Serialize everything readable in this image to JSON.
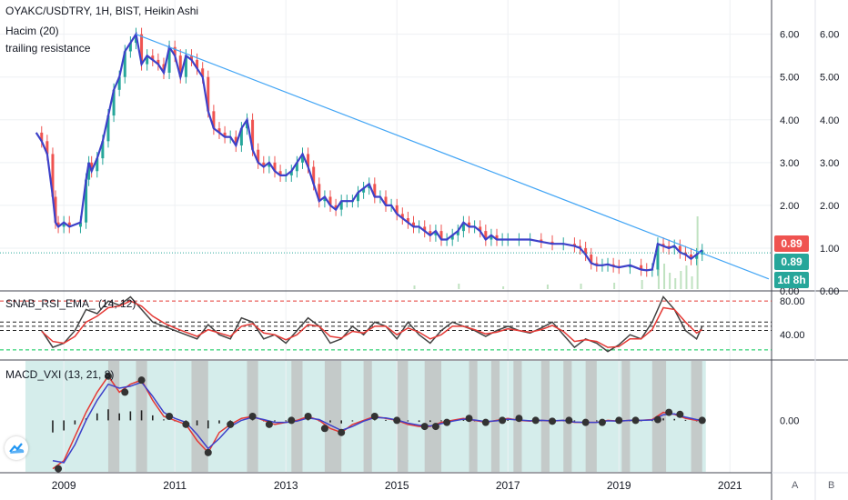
{
  "header": {
    "symbol_line": "OYAKC/USDTRY, 1H, BIST, Heikin Ashi",
    "indicator_1": "Hacim (20)",
    "indicator_2": "trailing resistance"
  },
  "price_tags": {
    "last_price": "0.89",
    "close_price": "0.89",
    "countdown": "1d 8h"
  },
  "rsi_panel": {
    "title": "SNAB_RSI_EMA_ (14, 12)"
  },
  "macd_panel": {
    "title": "MACD_VXI (13, 21, 8)"
  },
  "axis_buttons": {
    "auto": "A",
    "log": "B"
  },
  "colors": {
    "heikin_up": "#26a69a",
    "heikin_down": "#ef5350",
    "trailing_line": "#3d41c9",
    "trend_line": "#42a5f5",
    "rsi_line": "#424242",
    "rsi_ema": "#e53935",
    "macd_bg_teal": "#b2dfdb",
    "macd_bg_gray": "#bdbdbd",
    "last_price_red": "#ef5350",
    "close_teal": "#26a69a"
  },
  "chart_data": [
    {
      "type": "line",
      "title": "OYAKC/USDTRY, 1H, BIST, Heikin Ashi",
      "x_tick_labels": [
        "2009",
        "2011",
        "2013",
        "2015",
        "2017",
        "2019",
        "2021"
      ],
      "x_ticks": [
        2009,
        2011,
        2013,
        2015,
        2017,
        2019,
        2021
      ],
      "xlim": [
        2007.85,
        2021.75
      ],
      "y_tick_labels": [
        "0.00",
        "1.00",
        "2.00",
        "3.00",
        "4.00",
        "5.00",
        "6.00"
      ],
      "y_ticks": [
        0,
        1,
        2,
        3,
        4,
        5,
        6
      ],
      "ylim": [
        0,
        6.8
      ],
      "last_value": 0.89,
      "series": [
        {
          "x": [
            2008.5,
            2008.6,
            2008.7,
            2008.8,
            2008.85,
            2008.9,
            2009.0,
            2009.1,
            2009.3,
            2009.4,
            2009.45,
            2009.5,
            2009.6,
            2009.7,
            2009.8,
            2009.9,
            2010.0,
            2010.1,
            2010.2,
            2010.3,
            2010.4,
            2010.5,
            2010.6,
            2010.7,
            2010.8,
            2010.9,
            2011.0,
            2011.1,
            2011.2,
            2011.3,
            2011.4,
            2011.5,
            2011.6,
            2011.7,
            2011.8,
            2011.9,
            2012.0,
            2012.1,
            2012.2,
            2012.3,
            2012.4,
            2012.5,
            2012.6,
            2012.7,
            2012.8,
            2012.9,
            2013.0,
            2013.1,
            2013.2,
            2013.3,
            2013.4,
            2013.5,
            2013.6,
            2013.7,
            2013.8,
            2013.9,
            2014.0,
            2014.1,
            2014.2,
            2014.3,
            2014.4,
            2014.5,
            2014.6,
            2014.7,
            2014.8,
            2014.9,
            2015.0,
            2015.1,
            2015.2,
            2015.3,
            2015.4,
            2015.5,
            2015.6,
            2015.7,
            2015.8,
            2015.9,
            2016.0,
            2016.1,
            2016.2,
            2016.3,
            2016.4,
            2016.5,
            2016.6,
            2016.7,
            2016.8,
            2016.9,
            2017.0,
            2017.2,
            2017.4,
            2017.6,
            2017.8,
            2018.0,
            2018.2,
            2018.3,
            2018.4,
            2018.5,
            2018.6,
            2018.7,
            2018.8,
            2018.9,
            2019.0,
            2019.2,
            2019.4,
            2019.5,
            2019.6,
            2019.7,
            2019.8,
            2019.9,
            2020.0,
            2020.1,
            2020.2,
            2020.3,
            2020.4,
            2020.5
          ],
          "values": [
            3.7,
            3.5,
            3.2,
            2.2,
            1.6,
            1.5,
            1.6,
            1.5,
            1.6,
            2.6,
            3.0,
            2.8,
            3.1,
            3.5,
            4.1,
            4.7,
            5.0,
            5.6,
            5.8,
            6.0,
            5.3,
            5.5,
            5.4,
            5.3,
            5.1,
            5.7,
            5.5,
            5.0,
            5.5,
            5.4,
            5.2,
            5.0,
            4.2,
            3.8,
            3.7,
            3.6,
            3.6,
            3.4,
            3.8,
            4.0,
            3.3,
            3.0,
            2.9,
            3.0,
            2.8,
            2.7,
            2.7,
            2.8,
            3.0,
            3.2,
            2.9,
            2.5,
            2.1,
            2.2,
            2.0,
            1.9,
            2.1,
            2.1,
            2.1,
            2.3,
            2.4,
            2.5,
            2.2,
            2.2,
            2.0,
            2.0,
            1.8,
            1.7,
            1.6,
            1.5,
            1.5,
            1.4,
            1.3,
            1.4,
            1.2,
            1.2,
            1.3,
            1.4,
            1.6,
            1.5,
            1.5,
            1.4,
            1.2,
            1.3,
            1.2,
            1.2,
            1.2,
            1.2,
            1.2,
            1.15,
            1.1,
            1.1,
            1.05,
            1.0,
            0.85,
            0.65,
            0.6,
            0.6,
            0.62,
            0.58,
            0.55,
            0.6,
            0.5,
            0.48,
            0.5,
            1.1,
            1.05,
            1.0,
            1.05,
            0.9,
            0.85,
            0.75,
            0.85,
            0.95
          ]
        }
      ],
      "trend_line": {
        "x": [
          2010.3,
          2021.7
        ],
        "values": [
          6.0,
          0.28
        ]
      }
    },
    {
      "type": "line",
      "title": "SNAB_RSI_EMA_ (14, 12)",
      "y_tick_labels": [
        "80.00",
        "40.00"
      ],
      "y_ticks": [
        80,
        40
      ],
      "ylim": [
        10,
        92
      ],
      "levels": [
        80,
        55,
        50,
        45,
        22
      ],
      "series": [
        {
          "x": [
            2008.6,
            2008.8,
            2009.0,
            2009.2,
            2009.4,
            2009.6,
            2009.8,
            2010.0,
            2010.2,
            2010.4,
            2010.6,
            2010.8,
            2011.0,
            2011.2,
            2011.4,
            2011.6,
            2011.8,
            2012.0,
            2012.2,
            2012.4,
            2012.6,
            2012.8,
            2013.0,
            2013.2,
            2013.4,
            2013.6,
            2013.8,
            2014.0,
            2014.2,
            2014.4,
            2014.6,
            2014.8,
            2015.0,
            2015.2,
            2015.4,
            2015.6,
            2015.8,
            2016.0,
            2016.2,
            2016.4,
            2016.6,
            2016.8,
            2017.0,
            2017.2,
            2017.4,
            2017.6,
            2017.8,
            2018.0,
            2018.2,
            2018.4,
            2018.6,
            2018.8,
            2019.0,
            2019.2,
            2019.4,
            2019.6,
            2019.8,
            2020.0,
            2020.2,
            2020.4,
            2020.5
          ],
          "values": [
            45,
            25,
            30,
            45,
            70,
            65,
            80,
            75,
            85,
            70,
            55,
            50,
            45,
            40,
            35,
            52,
            40,
            35,
            60,
            55,
            35,
            40,
            30,
            45,
            60,
            50,
            30,
            35,
            50,
            40,
            55,
            50,
            35,
            55,
            40,
            30,
            45,
            55,
            50,
            45,
            38,
            45,
            50,
            45,
            42,
            48,
            55,
            40,
            25,
            35,
            30,
            20,
            28,
            40,
            35,
            55,
            85,
            70,
            45,
            35,
            50
          ]
        },
        {
          "x": [
            2008.6,
            2008.8,
            2009.0,
            2009.2,
            2009.4,
            2009.6,
            2009.8,
            2010.0,
            2010.2,
            2010.4,
            2010.6,
            2010.8,
            2011.0,
            2011.2,
            2011.4,
            2011.6,
            2011.8,
            2012.0,
            2012.2,
            2012.4,
            2012.6,
            2012.8,
            2013.0,
            2013.2,
            2013.4,
            2013.6,
            2013.8,
            2014.0,
            2014.2,
            2014.4,
            2014.6,
            2014.8,
            2015.0,
            2015.2,
            2015.4,
            2015.6,
            2015.8,
            2016.0,
            2016.2,
            2016.4,
            2016.6,
            2016.8,
            2017.0,
            2017.2,
            2017.4,
            2017.6,
            2017.8,
            2018.0,
            2018.2,
            2018.4,
            2018.6,
            2018.8,
            2019.0,
            2019.2,
            2019.4,
            2019.6,
            2019.8,
            2020.0,
            2020.2,
            2020.4,
            2020.5
          ],
          "values": [
            44,
            32,
            30,
            38,
            55,
            62,
            72,
            74,
            80,
            74,
            62,
            54,
            48,
            43,
            38,
            46,
            42,
            38,
            50,
            53,
            42,
            40,
            34,
            40,
            52,
            50,
            38,
            36,
            44,
            42,
            50,
            50,
            40,
            48,
            43,
            35,
            40,
            50,
            50,
            46,
            41,
            43,
            47,
            45,
            43,
            46,
            51,
            44,
            32,
            34,
            32,
            25,
            26,
            35,
            35,
            46,
            72,
            70,
            55,
            42,
            46
          ]
        }
      ]
    },
    {
      "type": "line",
      "title": "MACD_VXI (13, 21, 8)",
      "y_tick_labels": [
        "0.00"
      ],
      "y_ticks": [
        0
      ],
      "ylim": [
        -1.3,
        1.5
      ],
      "series": [
        {
          "x": [
            2008.8,
            2009.0,
            2009.2,
            2009.4,
            2009.6,
            2009.8,
            2010.0,
            2010.2,
            2010.4,
            2010.6,
            2010.8,
            2011.0,
            2011.2,
            2011.4,
            2011.6,
            2011.8,
            2012.0,
            2012.2,
            2012.4,
            2012.6,
            2012.8,
            2013.0,
            2013.2,
            2013.4,
            2013.6,
            2013.8,
            2014.0,
            2014.2,
            2014.4,
            2014.6,
            2014.8,
            2015.0,
            2015.2,
            2015.4,
            2015.6,
            2015.8,
            2016.0,
            2016.2,
            2016.4,
            2016.6,
            2016.8,
            2017.0,
            2017.2,
            2017.4,
            2017.6,
            2017.8,
            2018.0,
            2018.2,
            2018.4,
            2018.6,
            2018.8,
            2019.0,
            2019.2,
            2019.4,
            2019.6,
            2019.8,
            2020.0,
            2020.2,
            2020.4,
            2020.5
          ],
          "values": [
            -1.2,
            -1.0,
            -0.4,
            0.2,
            0.7,
            1.1,
            0.7,
            0.9,
            1.0,
            0.5,
            0.1,
            0.0,
            -0.1,
            -0.5,
            -0.8,
            -0.3,
            -0.1,
            0.05,
            0.1,
            0.0,
            -0.1,
            -0.05,
            0.0,
            0.1,
            0.0,
            -0.2,
            -0.3,
            -0.1,
            0.0,
            0.1,
            0.05,
            0.0,
            -0.1,
            -0.15,
            -0.15,
            -0.05,
            0.0,
            0.05,
            0.0,
            -0.05,
            0.0,
            0.05,
            0.0,
            -0.02,
            0.0,
            -0.02,
            0.0,
            -0.05,
            -0.05,
            -0.05,
            0.0,
            -0.02,
            0.0,
            0.0,
            0.02,
            0.2,
            0.15,
            0.05,
            0.0,
            0.0
          ]
        },
        {
          "x": [
            2008.8,
            2009.0,
            2009.2,
            2009.4,
            2009.6,
            2009.8,
            2010.0,
            2010.2,
            2010.4,
            2010.6,
            2010.8,
            2011.0,
            2011.2,
            2011.4,
            2011.6,
            2011.8,
            2012.0,
            2012.2,
            2012.4,
            2012.6,
            2012.8,
            2013.0,
            2013.2,
            2013.4,
            2013.6,
            2013.8,
            2014.0,
            2014.2,
            2014.4,
            2014.6,
            2014.8,
            2015.0,
            2015.2,
            2015.4,
            2015.6,
            2015.8,
            2016.0,
            2016.2,
            2016.4,
            2016.6,
            2016.8,
            2017.0,
            2017.2,
            2017.4,
            2017.6,
            2017.8,
            2018.0,
            2018.2,
            2018.4,
            2018.6,
            2018.8,
            2019.0,
            2019.2,
            2019.4,
            2019.6,
            2019.8,
            2020.0,
            2020.2,
            2020.4,
            2020.5
          ],
          "values": [
            -1.0,
            -1.05,
            -0.6,
            0.0,
            0.5,
            0.9,
            0.8,
            0.85,
            0.95,
            0.6,
            0.2,
            0.05,
            -0.05,
            -0.35,
            -0.7,
            -0.45,
            -0.15,
            0.0,
            0.08,
            0.02,
            -0.05,
            -0.05,
            -0.02,
            0.06,
            0.02,
            -0.12,
            -0.25,
            -0.15,
            -0.02,
            0.07,
            0.06,
            0.01,
            -0.07,
            -0.12,
            -0.14,
            -0.08,
            -0.02,
            0.03,
            0.01,
            -0.03,
            -0.01,
            0.03,
            0.01,
            -0.01,
            0.0,
            -0.01,
            0.0,
            -0.04,
            -0.05,
            -0.05,
            -0.01,
            -0.02,
            0.0,
            0.0,
            0.01,
            0.14,
            0.16,
            0.08,
            0.02,
            0.0
          ]
        }
      ],
      "signal_points": {
        "x": [
          2008.9,
          2009.8,
          2010.1,
          2010.4,
          2010.9,
          2011.2,
          2011.6,
          2012.0,
          2012.4,
          2012.7,
          2013.1,
          2013.4,
          2013.7,
          2014.0,
          2014.6,
          2015.0,
          2015.5,
          2015.7,
          2015.9,
          2016.3,
          2016.6,
          2016.9,
          2017.2,
          2017.5,
          2017.8,
          2018.1,
          2018.4,
          2018.7,
          2019.0,
          2019.3,
          2019.7,
          2019.9,
          2020.1,
          2020.5
        ],
        "values": [
          -1.2,
          1.1,
          0.7,
          1.0,
          0.1,
          -0.1,
          -0.8,
          -0.1,
          0.1,
          -0.1,
          0.0,
          0.1,
          -0.2,
          -0.3,
          0.1,
          0.0,
          -0.15,
          -0.15,
          -0.05,
          0.05,
          -0.05,
          0.0,
          0.05,
          0.0,
          -0.02,
          0.0,
          -0.05,
          -0.05,
          0.0,
          0.0,
          0.02,
          0.2,
          0.15,
          0.0
        ]
      },
      "shading_gray_ranges": [
        [
          2009.8,
          2010.0
        ],
        [
          2010.3,
          2010.5
        ],
        [
          2011.3,
          2011.6
        ],
        [
          2012.3,
          2012.5
        ],
        [
          2013.1,
          2013.3
        ],
        [
          2013.7,
          2014.0
        ],
        [
          2014.4,
          2014.55
        ],
        [
          2015.0,
          2015.2
        ],
        [
          2015.5,
          2015.8
        ],
        [
          2016.3,
          2016.45
        ],
        [
          2016.7,
          2016.85
        ],
        [
          2017.1,
          2017.25
        ],
        [
          2017.6,
          2017.75
        ],
        [
          2018.0,
          2018.15
        ],
        [
          2018.4,
          2018.6
        ],
        [
          2019.05,
          2019.2
        ],
        [
          2019.6,
          2019.85
        ],
        [
          2020.3,
          2020.5
        ]
      ]
    }
  ]
}
